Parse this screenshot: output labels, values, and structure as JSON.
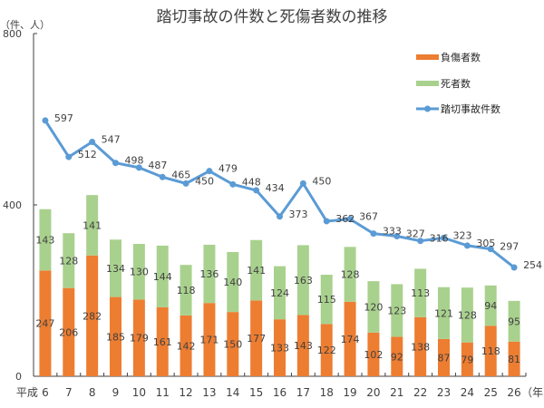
{
  "chart_data": {
    "type": "bar",
    "subtype": "stacked-bar-with-line",
    "title": "踏切事故の件数と死傷者数の推移",
    "ylabel": "（件、人）",
    "xlabel_prefix": "平成",
    "xlabel_suffix": "（年）",
    "ylim": [
      0,
      800
    ],
    "yticks": [
      0,
      400,
      800
    ],
    "grid": false,
    "legend_position": "top-right",
    "categories": [
      "6",
      "7",
      "8",
      "9",
      "10",
      "11",
      "12",
      "13",
      "14",
      "15",
      "16",
      "17",
      "18",
      "19",
      "20",
      "21",
      "22",
      "23",
      "24",
      "25",
      "26"
    ],
    "series": [
      {
        "name": "負傷者数",
        "type": "bar",
        "stack": "casualties",
        "color": "#ED7D31",
        "values": [
          247,
          206,
          282,
          185,
          179,
          161,
          142,
          171,
          150,
          177,
          133,
          143,
          122,
          174,
          102,
          92,
          138,
          87,
          79,
          118,
          81
        ]
      },
      {
        "name": "死者数",
        "type": "bar",
        "stack": "casualties",
        "color": "#A9D18E",
        "values": [
          143,
          128,
          141,
          134,
          130,
          144,
          118,
          136,
          140,
          141,
          124,
          163,
          115,
          128,
          120,
          123,
          113,
          121,
          128,
          94,
          95
        ]
      },
      {
        "name": "踏切事故件数",
        "type": "line",
        "color": "#5B9BD5",
        "values": [
          597,
          512,
          547,
          498,
          487,
          465,
          450,
          479,
          448,
          434,
          373,
          450,
          362,
          367,
          333,
          327,
          316,
          323,
          305,
          297,
          254
        ]
      }
    ]
  }
}
